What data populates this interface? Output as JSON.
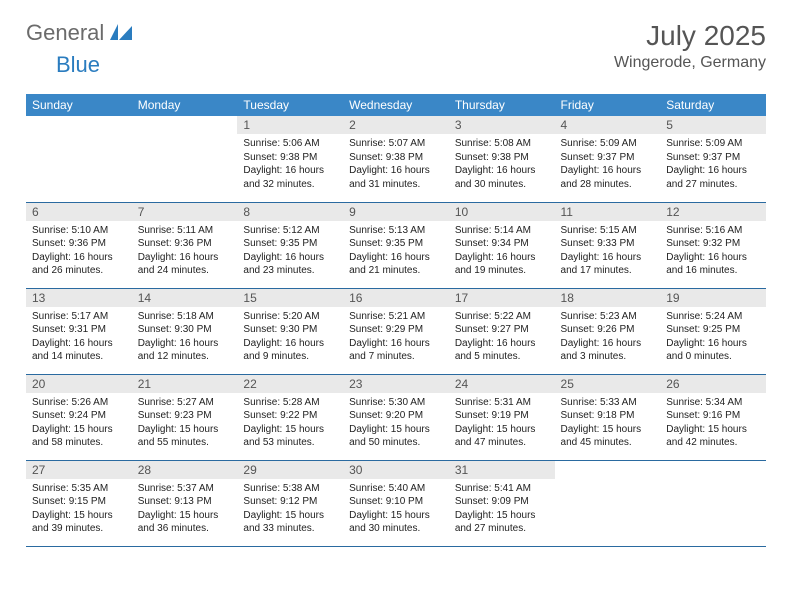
{
  "brand": {
    "part1": "General",
    "part2": "Blue"
  },
  "title": "July 2025",
  "location": "Wingerode, Germany",
  "colors": {
    "header_bg": "#3a87c7",
    "header_fg": "#ffffff",
    "daynum_bg": "#e9e9e9",
    "rule": "#2a6aa0",
    "brand_blue": "#2a7cbf",
    "brand_gray": "#6b6b6b"
  },
  "day_headers": [
    "Sunday",
    "Monday",
    "Tuesday",
    "Wednesday",
    "Thursday",
    "Friday",
    "Saturday"
  ],
  "weeks": [
    [
      null,
      null,
      {
        "n": "1",
        "sr": "5:06 AM",
        "ss": "9:38 PM",
        "dl": "16 hours and 32 minutes."
      },
      {
        "n": "2",
        "sr": "5:07 AM",
        "ss": "9:38 PM",
        "dl": "16 hours and 31 minutes."
      },
      {
        "n": "3",
        "sr": "5:08 AM",
        "ss": "9:38 PM",
        "dl": "16 hours and 30 minutes."
      },
      {
        "n": "4",
        "sr": "5:09 AM",
        "ss": "9:37 PM",
        "dl": "16 hours and 28 minutes."
      },
      {
        "n": "5",
        "sr": "5:09 AM",
        "ss": "9:37 PM",
        "dl": "16 hours and 27 minutes."
      }
    ],
    [
      {
        "n": "6",
        "sr": "5:10 AM",
        "ss": "9:36 PM",
        "dl": "16 hours and 26 minutes."
      },
      {
        "n": "7",
        "sr": "5:11 AM",
        "ss": "9:36 PM",
        "dl": "16 hours and 24 minutes."
      },
      {
        "n": "8",
        "sr": "5:12 AM",
        "ss": "9:35 PM",
        "dl": "16 hours and 23 minutes."
      },
      {
        "n": "9",
        "sr": "5:13 AM",
        "ss": "9:35 PM",
        "dl": "16 hours and 21 minutes."
      },
      {
        "n": "10",
        "sr": "5:14 AM",
        "ss": "9:34 PM",
        "dl": "16 hours and 19 minutes."
      },
      {
        "n": "11",
        "sr": "5:15 AM",
        "ss": "9:33 PM",
        "dl": "16 hours and 17 minutes."
      },
      {
        "n": "12",
        "sr": "5:16 AM",
        "ss": "9:32 PM",
        "dl": "16 hours and 16 minutes."
      }
    ],
    [
      {
        "n": "13",
        "sr": "5:17 AM",
        "ss": "9:31 PM",
        "dl": "16 hours and 14 minutes."
      },
      {
        "n": "14",
        "sr": "5:18 AM",
        "ss": "9:30 PM",
        "dl": "16 hours and 12 minutes."
      },
      {
        "n": "15",
        "sr": "5:20 AM",
        "ss": "9:30 PM",
        "dl": "16 hours and 9 minutes."
      },
      {
        "n": "16",
        "sr": "5:21 AM",
        "ss": "9:29 PM",
        "dl": "16 hours and 7 minutes."
      },
      {
        "n": "17",
        "sr": "5:22 AM",
        "ss": "9:27 PM",
        "dl": "16 hours and 5 minutes."
      },
      {
        "n": "18",
        "sr": "5:23 AM",
        "ss": "9:26 PM",
        "dl": "16 hours and 3 minutes."
      },
      {
        "n": "19",
        "sr": "5:24 AM",
        "ss": "9:25 PM",
        "dl": "16 hours and 0 minutes."
      }
    ],
    [
      {
        "n": "20",
        "sr": "5:26 AM",
        "ss": "9:24 PM",
        "dl": "15 hours and 58 minutes."
      },
      {
        "n": "21",
        "sr": "5:27 AM",
        "ss": "9:23 PM",
        "dl": "15 hours and 55 minutes."
      },
      {
        "n": "22",
        "sr": "5:28 AM",
        "ss": "9:22 PM",
        "dl": "15 hours and 53 minutes."
      },
      {
        "n": "23",
        "sr": "5:30 AM",
        "ss": "9:20 PM",
        "dl": "15 hours and 50 minutes."
      },
      {
        "n": "24",
        "sr": "5:31 AM",
        "ss": "9:19 PM",
        "dl": "15 hours and 47 minutes."
      },
      {
        "n": "25",
        "sr": "5:33 AM",
        "ss": "9:18 PM",
        "dl": "15 hours and 45 minutes."
      },
      {
        "n": "26",
        "sr": "5:34 AM",
        "ss": "9:16 PM",
        "dl": "15 hours and 42 minutes."
      }
    ],
    [
      {
        "n": "27",
        "sr": "5:35 AM",
        "ss": "9:15 PM",
        "dl": "15 hours and 39 minutes."
      },
      {
        "n": "28",
        "sr": "5:37 AM",
        "ss": "9:13 PM",
        "dl": "15 hours and 36 minutes."
      },
      {
        "n": "29",
        "sr": "5:38 AM",
        "ss": "9:12 PM",
        "dl": "15 hours and 33 minutes."
      },
      {
        "n": "30",
        "sr": "5:40 AM",
        "ss": "9:10 PM",
        "dl": "15 hours and 30 minutes."
      },
      {
        "n": "31",
        "sr": "5:41 AM",
        "ss": "9:09 PM",
        "dl": "15 hours and 27 minutes."
      },
      null,
      null
    ]
  ],
  "labels": {
    "sunrise": "Sunrise:",
    "sunset": "Sunset:",
    "daylight": "Daylight:"
  }
}
